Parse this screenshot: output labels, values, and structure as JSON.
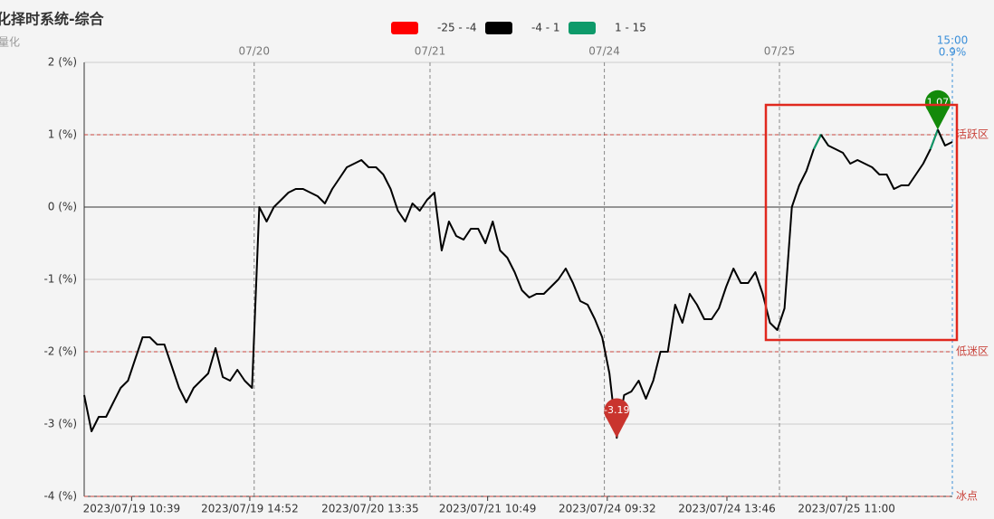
{
  "chart_data": {
    "type": "line",
    "title": "化择时系统-综合",
    "subtitle": "量化",
    "xlim": [
      0,
      119
    ],
    "ylim": [
      -4,
      2
    ],
    "yticks": [
      {
        "value": 2,
        "label": "2 (%)"
      },
      {
        "value": 1,
        "label": "1 (%)"
      },
      {
        "value": 0,
        "label": "0 (%)"
      },
      {
        "value": -1,
        "label": "-1 (%)"
      },
      {
        "value": -2,
        "label": "-2 (%)"
      },
      {
        "value": -3,
        "label": "-3 (%)"
      },
      {
        "value": -4,
        "label": "-4 (%)"
      }
    ],
    "xticks": [
      {
        "value": 6.5,
        "label": "2023/07/19 10:39"
      },
      {
        "value": 22.7,
        "label": "2023/07/19 14:52"
      },
      {
        "value": 39.2,
        "label": "2023/07/20 13:35"
      },
      {
        "value": 55.3,
        "label": "2023/07/21 10:49"
      },
      {
        "value": 71.7,
        "label": "2023/07/24 09:32"
      },
      {
        "value": 88.1,
        "label": "2023/07/24 13:46"
      },
      {
        "value": 104.5,
        "label": "2023/07/25 11:00"
      }
    ],
    "day_markers": [
      {
        "value": 23.3,
        "label": "07/20"
      },
      {
        "value": 47.4,
        "label": "07/21"
      },
      {
        "value": 71.3,
        "label": "07/24"
      },
      {
        "value": 95.3,
        "label": "07/25"
      }
    ],
    "end_marker": {
      "value": 119,
      "time": "15:00",
      "last_value": "0.9%",
      "color": "#3b8fd9"
    },
    "mark_lines": [
      {
        "value": 1,
        "label": "活跃区"
      },
      {
        "value": -2,
        "label": "低迷区"
      },
      {
        "value": -4,
        "label": "冰点"
      }
    ],
    "mark_line_color": "#c9433b",
    "pieces": [
      {
        "label": "-25 - -4",
        "min": -25,
        "max": -4,
        "color": "#ff0000"
      },
      {
        "label": "-4 - 1",
        "min": -4,
        "max": 1,
        "color": "#000000"
      },
      {
        "label": "1 - 15",
        "min": 1,
        "max": 15,
        "color": "#0e9a6a"
      }
    ],
    "pin_colors": {
      "max": "#138a0a",
      "min": "#c9342e"
    },
    "series": [
      {
        "values": [
          -2.6,
          -3.1,
          -2.9,
          -2.9,
          -2.7,
          -2.5,
          -2.4,
          -2.1,
          -1.8,
          -1.8,
          -1.9,
          -1.9,
          -2.2,
          -2.5,
          -2.7,
          -2.5,
          -2.4,
          -2.3,
          -1.95,
          -2.35,
          -2.4,
          -2.25,
          -2.4,
          -2.5,
          0.0,
          -0.2,
          0.0,
          0.1,
          0.2,
          0.25,
          0.25,
          0.2,
          0.15,
          0.05,
          0.25,
          0.4,
          0.55,
          0.6,
          0.65,
          0.55,
          0.55,
          0.45,
          0.25,
          -0.05,
          -0.2,
          0.05,
          -0.05,
          0.1,
          0.2,
          -0.6,
          -0.2,
          -0.4,
          -0.45,
          -0.3,
          -0.3,
          -0.5,
          -0.2,
          -0.6,
          -0.7,
          -0.9,
          -1.15,
          -1.25,
          -1.2,
          -1.2,
          -1.1,
          -1.0,
          -0.85,
          -1.05,
          -1.3,
          -1.35,
          -1.55,
          -1.8,
          -2.3,
          -3.19,
          -2.6,
          -2.55,
          -2.4,
          -2.65,
          -2.4,
          -2.0,
          -2.0,
          -1.35,
          -1.6,
          -1.2,
          -1.35,
          -1.55,
          -1.55,
          -1.4,
          -1.1,
          -0.85,
          -1.05,
          -1.05,
          -0.9,
          -1.2,
          -1.6,
          -1.7,
          -1.4,
          0.0,
          0.3,
          0.5,
          0.8,
          1.0,
          0.85,
          0.8,
          0.75,
          0.6,
          0.65,
          0.6,
          0.55,
          0.45,
          0.45,
          0.25,
          0.3,
          0.3,
          0.45,
          0.6,
          0.8,
          1.07,
          0.85,
          0.9
        ]
      }
    ]
  }
}
